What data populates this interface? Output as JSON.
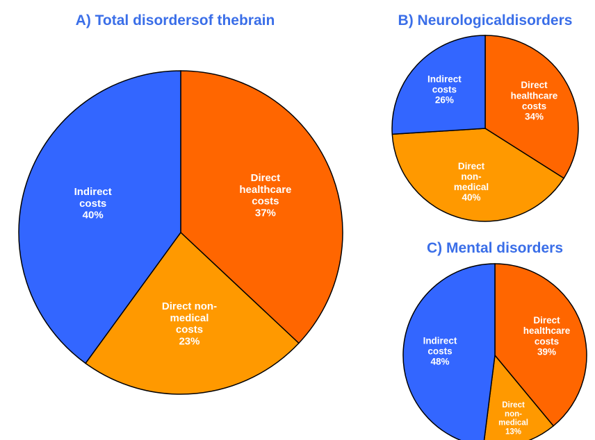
{
  "chart_data": [
    {
      "type": "pie",
      "title": "A) Total disordersof thebrain",
      "categories": [
        [
          "Direct",
          "healthcare",
          "costs"
        ],
        [
          "Direct non-",
          "medical",
          "costs"
        ],
        [
          "Indirect",
          "costs"
        ]
      ],
      "values": [
        37,
        23,
        40
      ],
      "value_labels": [
        "37%",
        "23%",
        "40%"
      ],
      "colors": [
        "#ff6600",
        "#ff9900",
        "#3366ff"
      ]
    },
    {
      "type": "pie",
      "title": "B) Neurologicaldisorders",
      "categories": [
        [
          "Direct",
          "healthcare",
          "costs"
        ],
        [
          "Direct",
          "non-",
          "medical"
        ],
        [
          "Indirect",
          "costs"
        ]
      ],
      "values": [
        34,
        40,
        26
      ],
      "value_labels": [
        "34%",
        "40%",
        "26%"
      ],
      "colors": [
        "#ff6600",
        "#ff9900",
        "#3366ff"
      ]
    },
    {
      "type": "pie",
      "title": "C) Mental disorders",
      "categories": [
        [
          "Direct",
          "healthcare",
          "costs"
        ],
        [
          "Direct",
          "non-",
          "medical"
        ],
        [
          "Indirect",
          "costs"
        ]
      ],
      "values": [
        39,
        13,
        48
      ],
      "value_labels": [
        "39%",
        "13%",
        "48%"
      ],
      "colors": [
        "#ff6600",
        "#ff9900",
        "#3366ff"
      ]
    }
  ]
}
